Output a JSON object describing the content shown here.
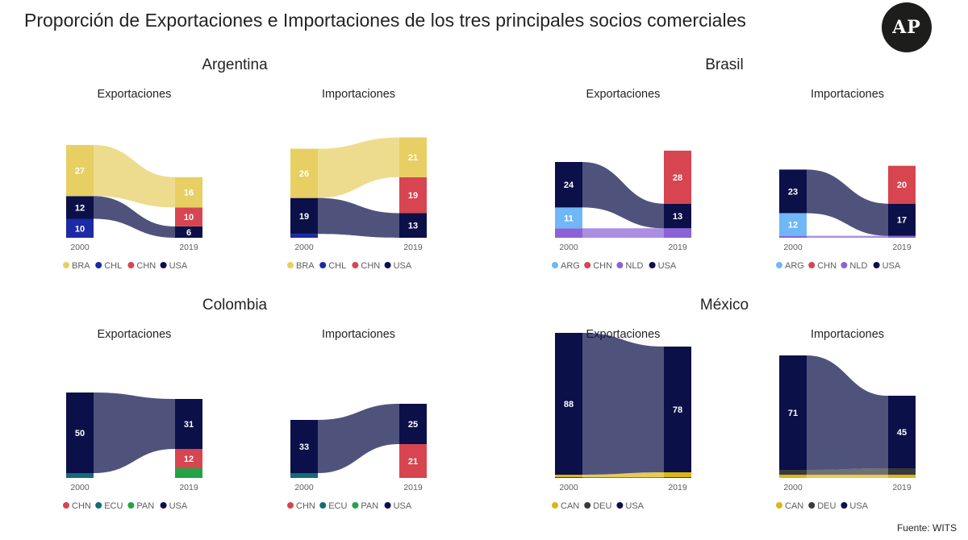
{
  "title": "Proporción de Exportaciones e Importaciones de los tres principales socios comerciales",
  "logo": "AP",
  "source": "Fuente: WITS",
  "colors": {
    "BRA": "#e8cf63",
    "CHL": "#1b2aa6",
    "CHN": "#d64550",
    "USA": "#0b1049",
    "ARG": "#6fb7f7",
    "NLD": "#8b62d6",
    "ECU": "#146b78",
    "PAN": "#23a344",
    "CAN": "#dcb714",
    "DEU": "#3a3a3a"
  },
  "countries": [
    {
      "name": "Argentina",
      "legend": [
        "BRA",
        "CHL",
        "CHN",
        "USA"
      ],
      "panels": [
        {
          "title": "Exportaciones",
          "x_labels": [
            "2000",
            "2019"
          ],
          "stacks": {
            "2000": [
              {
                "partner": "CHL",
                "value": 10
              },
              {
                "partner": "USA",
                "value": 12
              },
              {
                "partner": "BRA",
                "value": 27
              }
            ],
            "2019": [
              {
                "partner": "USA",
                "value": 6
              },
              {
                "partner": "CHN",
                "value": 10
              },
              {
                "partner": "BRA",
                "value": 16
              }
            ]
          }
        },
        {
          "title": "Importaciones",
          "x_labels": [
            "2000",
            "2019"
          ],
          "stacks": {
            "2000": [
              {
                "partner": "CHL",
                "value": 2
              },
              {
                "partner": "USA",
                "value": 19
              },
              {
                "partner": "BRA",
                "value": 26
              }
            ],
            "2019": [
              {
                "partner": "USA",
                "value": 13
              },
              {
                "partner": "CHN",
                "value": 19
              },
              {
                "partner": "BRA",
                "value": 21
              }
            ]
          }
        }
      ]
    },
    {
      "name": "Brasil",
      "legend": [
        "ARG",
        "CHN",
        "NLD",
        "USA"
      ],
      "panels": [
        {
          "title": "Exportaciones",
          "x_labels": [
            "2000",
            "2019"
          ],
          "stacks": {
            "2000": [
              {
                "partner": "NLD",
                "value": 5
              },
              {
                "partner": "ARG",
                "value": 11
              },
              {
                "partner": "USA",
                "value": 24
              }
            ],
            "2019": [
              {
                "partner": "NLD",
                "value": 5
              },
              {
                "partner": "USA",
                "value": 13
              },
              {
                "partner": "CHN",
                "value": 28
              }
            ]
          }
        },
        {
          "title": "Importaciones",
          "x_labels": [
            "2000",
            "2019"
          ],
          "stacks": {
            "2000": [
              {
                "partner": "NLD",
                "value": 1
              },
              {
                "partner": "ARG",
                "value": 12
              },
              {
                "partner": "USA",
                "value": 23
              }
            ],
            "2019": [
              {
                "partner": "NLD",
                "value": 1
              },
              {
                "partner": "USA",
                "value": 17
              },
              {
                "partner": "CHN",
                "value": 20
              }
            ]
          }
        }
      ]
    },
    {
      "name": "Colombia",
      "legend": [
        "CHN",
        "ECU",
        "PAN",
        "USA"
      ],
      "panels": [
        {
          "title": "Exportaciones",
          "x_labels": [
            "2000",
            "2019"
          ],
          "stacks": {
            "2000": [
              {
                "partner": "ECU",
                "value": 3
              },
              {
                "partner": "USA",
                "value": 50
              }
            ],
            "2019": [
              {
                "partner": "PAN",
                "value": 6
              },
              {
                "partner": "CHN",
                "value": 12
              },
              {
                "partner": "USA",
                "value": 31
              }
            ]
          }
        },
        {
          "title": "Importaciones",
          "x_labels": [
            "2000",
            "2019"
          ],
          "stacks": {
            "2000": [
              {
                "partner": "ECU",
                "value": 3
              },
              {
                "partner": "USA",
                "value": 33
              }
            ],
            "2019": [
              {
                "partner": "CHN",
                "value": 21
              },
              {
                "partner": "USA",
                "value": 25
              }
            ]
          }
        }
      ]
    },
    {
      "name": "México",
      "legend": [
        "CAN",
        "DEU",
        "USA"
      ],
      "panels": [
        {
          "title": "Exportaciones",
          "x_labels": [
            "2000",
            "2019"
          ],
          "stacks": {
            "2000": [
              {
                "partner": "DEU",
                "value": 0.5
              },
              {
                "partner": "CAN",
                "value": 1.5
              },
              {
                "partner": "USA",
                "value": 88
              }
            ],
            "2019": [
              {
                "partner": "DEU",
                "value": 0.5
              },
              {
                "partner": "CAN",
                "value": 3
              },
              {
                "partner": "USA",
                "value": 78
              }
            ]
          }
        },
        {
          "title": "Importaciones",
          "x_labels": [
            "2000",
            "2019"
          ],
          "stacks": {
            "2000": [
              {
                "partner": "CAN",
                "value": 2
              },
              {
                "partner": "DEU",
                "value": 3
              },
              {
                "partner": "USA",
                "value": 71
              }
            ],
            "2019": [
              {
                "partner": "CAN",
                "value": 2
              },
              {
                "partner": "DEU",
                "value": 4
              },
              {
                "partner": "USA",
                "value": 45
              }
            ]
          }
        }
      ]
    }
  ],
  "chart_data": [
    {
      "type": "bar",
      "title": "Argentina — Exportaciones",
      "categories": [
        "2000",
        "2019"
      ],
      "series": [
        {
          "name": "BRA",
          "values": [
            27,
            16
          ]
        },
        {
          "name": "CHL",
          "values": [
            10,
            null
          ]
        },
        {
          "name": "CHN",
          "values": [
            null,
            10
          ]
        },
        {
          "name": "USA",
          "values": [
            12,
            6
          ]
        }
      ]
    },
    {
      "type": "bar",
      "title": "Argentina — Importaciones",
      "categories": [
        "2000",
        "2019"
      ],
      "series": [
        {
          "name": "BRA",
          "values": [
            26,
            21
          ]
        },
        {
          "name": "CHL",
          "values": [
            2,
            null
          ]
        },
        {
          "name": "CHN",
          "values": [
            null,
            19
          ]
        },
        {
          "name": "USA",
          "values": [
            19,
            13
          ]
        }
      ]
    },
    {
      "type": "bar",
      "title": "Brasil — Exportaciones",
      "categories": [
        "2000",
        "2019"
      ],
      "series": [
        {
          "name": "ARG",
          "values": [
            11,
            null
          ]
        },
        {
          "name": "CHN",
          "values": [
            null,
            28
          ]
        },
        {
          "name": "NLD",
          "values": [
            5,
            5
          ]
        },
        {
          "name": "USA",
          "values": [
            24,
            13
          ]
        }
      ]
    },
    {
      "type": "bar",
      "title": "Brasil — Importaciones",
      "categories": [
        "2000",
        "2019"
      ],
      "series": [
        {
          "name": "ARG",
          "values": [
            12,
            null
          ]
        },
        {
          "name": "CHN",
          "values": [
            null,
            20
          ]
        },
        {
          "name": "NLD",
          "values": [
            1,
            1
          ]
        },
        {
          "name": "USA",
          "values": [
            23,
            17
          ]
        }
      ]
    },
    {
      "type": "bar",
      "title": "Colombia — Exportaciones",
      "categories": [
        "2000",
        "2019"
      ],
      "series": [
        {
          "name": "CHN",
          "values": [
            null,
            12
          ]
        },
        {
          "name": "ECU",
          "values": [
            3,
            null
          ]
        },
        {
          "name": "PAN",
          "values": [
            null,
            6
          ]
        },
        {
          "name": "USA",
          "values": [
            50,
            31
          ]
        }
      ]
    },
    {
      "type": "bar",
      "title": "Colombia — Importaciones",
      "categories": [
        "2000",
        "2019"
      ],
      "series": [
        {
          "name": "CHN",
          "values": [
            null,
            21
          ]
        },
        {
          "name": "ECU",
          "values": [
            3,
            null
          ]
        },
        {
          "name": "PAN",
          "values": [
            null,
            null
          ]
        },
        {
          "name": "USA",
          "values": [
            33,
            25
          ]
        }
      ]
    },
    {
      "type": "bar",
      "title": "México — Exportaciones",
      "categories": [
        "2000",
        "2019"
      ],
      "series": [
        {
          "name": "CAN",
          "values": [
            1.5,
            3
          ]
        },
        {
          "name": "DEU",
          "values": [
            0.5,
            0.5
          ]
        },
        {
          "name": "USA",
          "values": [
            88,
            78
          ]
        }
      ]
    },
    {
      "type": "bar",
      "title": "México — Importaciones",
      "categories": [
        "2000",
        "2019"
      ],
      "series": [
        {
          "name": "CAN",
          "values": [
            2,
            2
          ]
        },
        {
          "name": "DEU",
          "values": [
            3,
            4
          ]
        },
        {
          "name": "USA",
          "values": [
            71,
            45
          ]
        }
      ]
    }
  ]
}
